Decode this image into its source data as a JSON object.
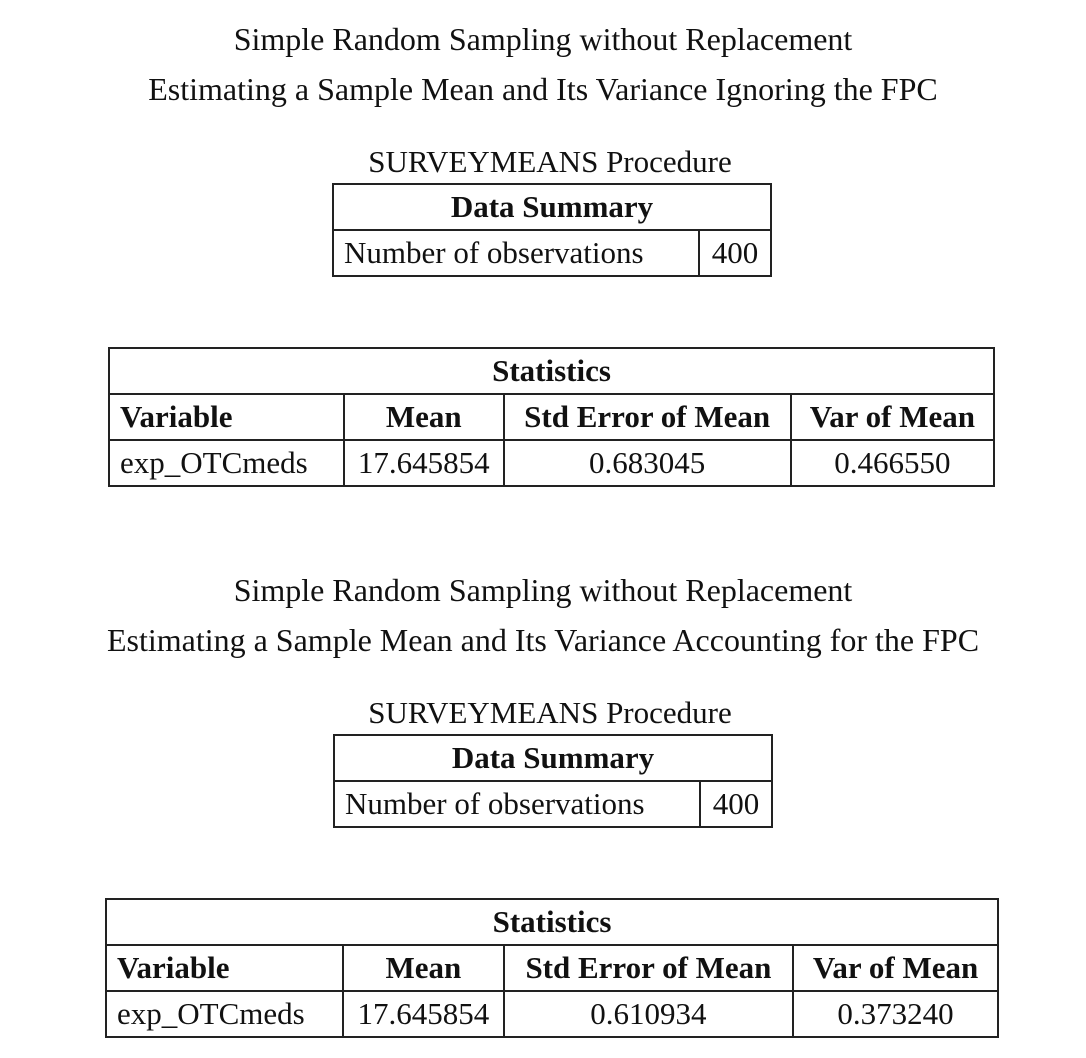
{
  "sections": [
    {
      "title_line1": "Simple Random Sampling without Replacement",
      "title_line2": "Estimating a Sample Mean and Its Variance Ignoring the FPC",
      "procedure": "SURVEYMEANS Procedure",
      "data_summary": {
        "caption": "Data Summary",
        "label": "Number of observations",
        "value": "400"
      },
      "statistics": {
        "caption": "Statistics",
        "headers": [
          "Variable",
          "Mean",
          "Std Error of Mean",
          "Var of Mean"
        ],
        "row": [
          "exp_OTCmeds",
          "17.645854",
          "0.683045",
          "0.466550"
        ]
      }
    },
    {
      "title_line1": "Simple Random Sampling without Replacement",
      "title_line2": "Estimating a Sample Mean and Its Variance Accounting for the FPC",
      "procedure": "SURVEYMEANS Procedure",
      "data_summary": {
        "caption": "Data Summary",
        "label": "Number of observations",
        "value": "400"
      },
      "statistics": {
        "caption": "Statistics",
        "headers": [
          "Variable",
          "Mean",
          "Std Error of Mean",
          "Var of Mean"
        ],
        "row": [
          "exp_OTCmeds",
          "17.645854",
          "0.610934",
          "0.373240"
        ]
      }
    }
  ]
}
